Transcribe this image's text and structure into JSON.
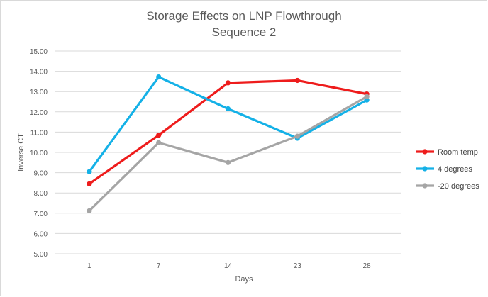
{
  "chart_data": {
    "type": "line",
    "title": "Storage Effects on LNP Flowthrough",
    "subtitle": "Sequence 2",
    "xlabel": "Days",
    "ylabel": "Inverse CT",
    "categories": [
      "1",
      "7",
      "14",
      "23",
      "28"
    ],
    "ylim": [
      5,
      15
    ],
    "yticks": [
      5,
      6,
      7,
      8,
      9,
      10,
      11,
      12,
      13,
      14,
      15
    ],
    "ytick_labels": [
      "5.00",
      "6.00",
      "7.00",
      "8.00",
      "9.00",
      "10.00",
      "11.00",
      "12.00",
      "13.00",
      "14.00",
      "15.00"
    ],
    "grid": true,
    "legend_position": "right",
    "series": [
      {
        "name": "Room temp",
        "color": "#ee1c1c",
        "values": [
          8.45,
          10.85,
          13.43,
          13.55,
          12.88
        ]
      },
      {
        "name": "4 degrees",
        "color": "#14b1e7",
        "values": [
          9.05,
          13.72,
          12.15,
          10.7,
          12.58
        ]
      },
      {
        "name": "-20 degrees",
        "color": "#a5a5a5",
        "values": [
          7.12,
          10.48,
          9.5,
          10.8,
          12.75
        ]
      }
    ]
  }
}
